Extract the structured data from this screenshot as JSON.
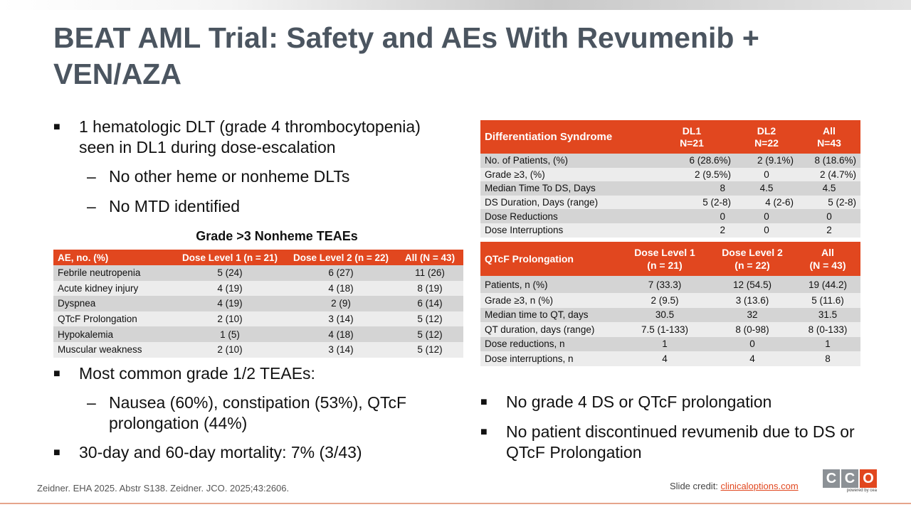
{
  "slide": {
    "title": "BEAT AML Trial: Safety and AEs With Revumenib + VEN/AZA",
    "left_bullets_top": [
      {
        "level": 1,
        "text": "1 hematologic DLT (grade 4 thrombocytopenia) seen in DL1 during dose-escalation"
      },
      {
        "level": 2,
        "text": "No other heme or nonheme DLTs"
      },
      {
        "level": 2,
        "text": "No MTD identified"
      }
    ],
    "left_bullets_bottom": [
      {
        "level": 1,
        "text": "Most common grade 1/2 TEAEs:"
      },
      {
        "level": 2,
        "text": "Nausea (60%), constipation (53%), QTcF prolongation (44%)"
      },
      {
        "level": 1,
        "text": "30-day and 60-day mortality: 7% (3/43)"
      }
    ],
    "right_bullets": [
      {
        "level": 1,
        "text": "No grade 4 DS or QTcF prolongation"
      },
      {
        "level": 1,
        "text": "No patient discontinued revumenib due to DS or QTcF Prolongation"
      }
    ],
    "ae_table": {
      "caption": "Grade >3 Nonheme TEAEs",
      "headers": [
        "AE, no. (%)",
        "Dose Level 1 (n = 21)",
        "Dose Level 2 (n = 22)",
        "All (N = 43)"
      ],
      "rows": [
        [
          "Febrile neutropenia",
          "5 (24)",
          "6 (27)",
          "11 (26)"
        ],
        [
          "Acute kidney injury",
          "4 (19)",
          "4 (18)",
          "8 (19)"
        ],
        [
          "Dyspnea",
          "4 (19)",
          "2 (9)",
          "6 (14)"
        ],
        [
          "QTcF Prolongation",
          "2 (10)",
          "3 (14)",
          "5 (12)"
        ],
        [
          "Hypokalemia",
          "1 (5)",
          "4 (18)",
          "5 (12)"
        ],
        [
          "Muscular weakness",
          "2 (10)",
          "3 (14)",
          "5 (12)"
        ]
      ]
    },
    "ds_table": {
      "headers": [
        "Differentiation Syndrome",
        "DL1\nN=21",
        "DL2\nN=22",
        "All\nN=43"
      ],
      "rows": [
        [
          "No. of Patients, (%)",
          "6 (28.6%)",
          "2 (9.1%)",
          "8 (18.6%)"
        ],
        [
          "Grade ≥3, (%)",
          "2 (9.5%)",
          "0",
          "2 (4.7%)"
        ],
        [
          "Median Time To DS, Days",
          "8",
          "4.5",
          "4.5"
        ],
        [
          "DS Duration, Days (range)",
          "5 (2-8)",
          "4 (2-6)",
          "5 (2-8)"
        ],
        [
          "Dose Reductions",
          "0",
          "0",
          "0"
        ],
        [
          "Dose Interruptions",
          "2",
          "0",
          "2"
        ]
      ]
    },
    "qt_table": {
      "headers": [
        "QTcF Prolongation",
        "Dose Level 1\n(n = 21)",
        "Dose Level 2\n(n = 22)",
        "All\n(N = 43)"
      ],
      "rows": [
        [
          "Patients, n (%)",
          "7 (33.3)",
          "12 (54.5)",
          "19 (44.2)"
        ],
        [
          "Grade ≥3, n (%)",
          "2 (9.5)",
          "3 (13.6)",
          "5 (11.6)"
        ],
        [
          "Median time to QT, days",
          "30.5",
          "32",
          "31.5"
        ],
        [
          "QT duration, days (range)",
          "7.5 (1-133)",
          "8 (0-98)",
          "8 (0-133)"
        ],
        [
          "Dose reductions, n",
          "1",
          "0",
          "1"
        ],
        [
          "Dose interruptions, n",
          "4",
          "4",
          "8"
        ]
      ]
    },
    "footer": {
      "reference": "Zeidner. EHA 2025. Abstr S138. Zeidner. JCO. 2025;43:2606.",
      "credit_label": "Slide credit: ",
      "credit_link": "clinicaloptions.com",
      "logo_letters": [
        "C",
        "C",
        "O"
      ],
      "logo_sub": "powered by cea"
    },
    "colors": {
      "accent": "#e1471f",
      "title": "#4b5560",
      "stripe": "#d4d4d4",
      "logo_gray": "#8c9196"
    },
    "icons": {
      "bullet_level1": "square-bullet-icon",
      "bullet_level2": "dash-bullet-icon"
    }
  }
}
